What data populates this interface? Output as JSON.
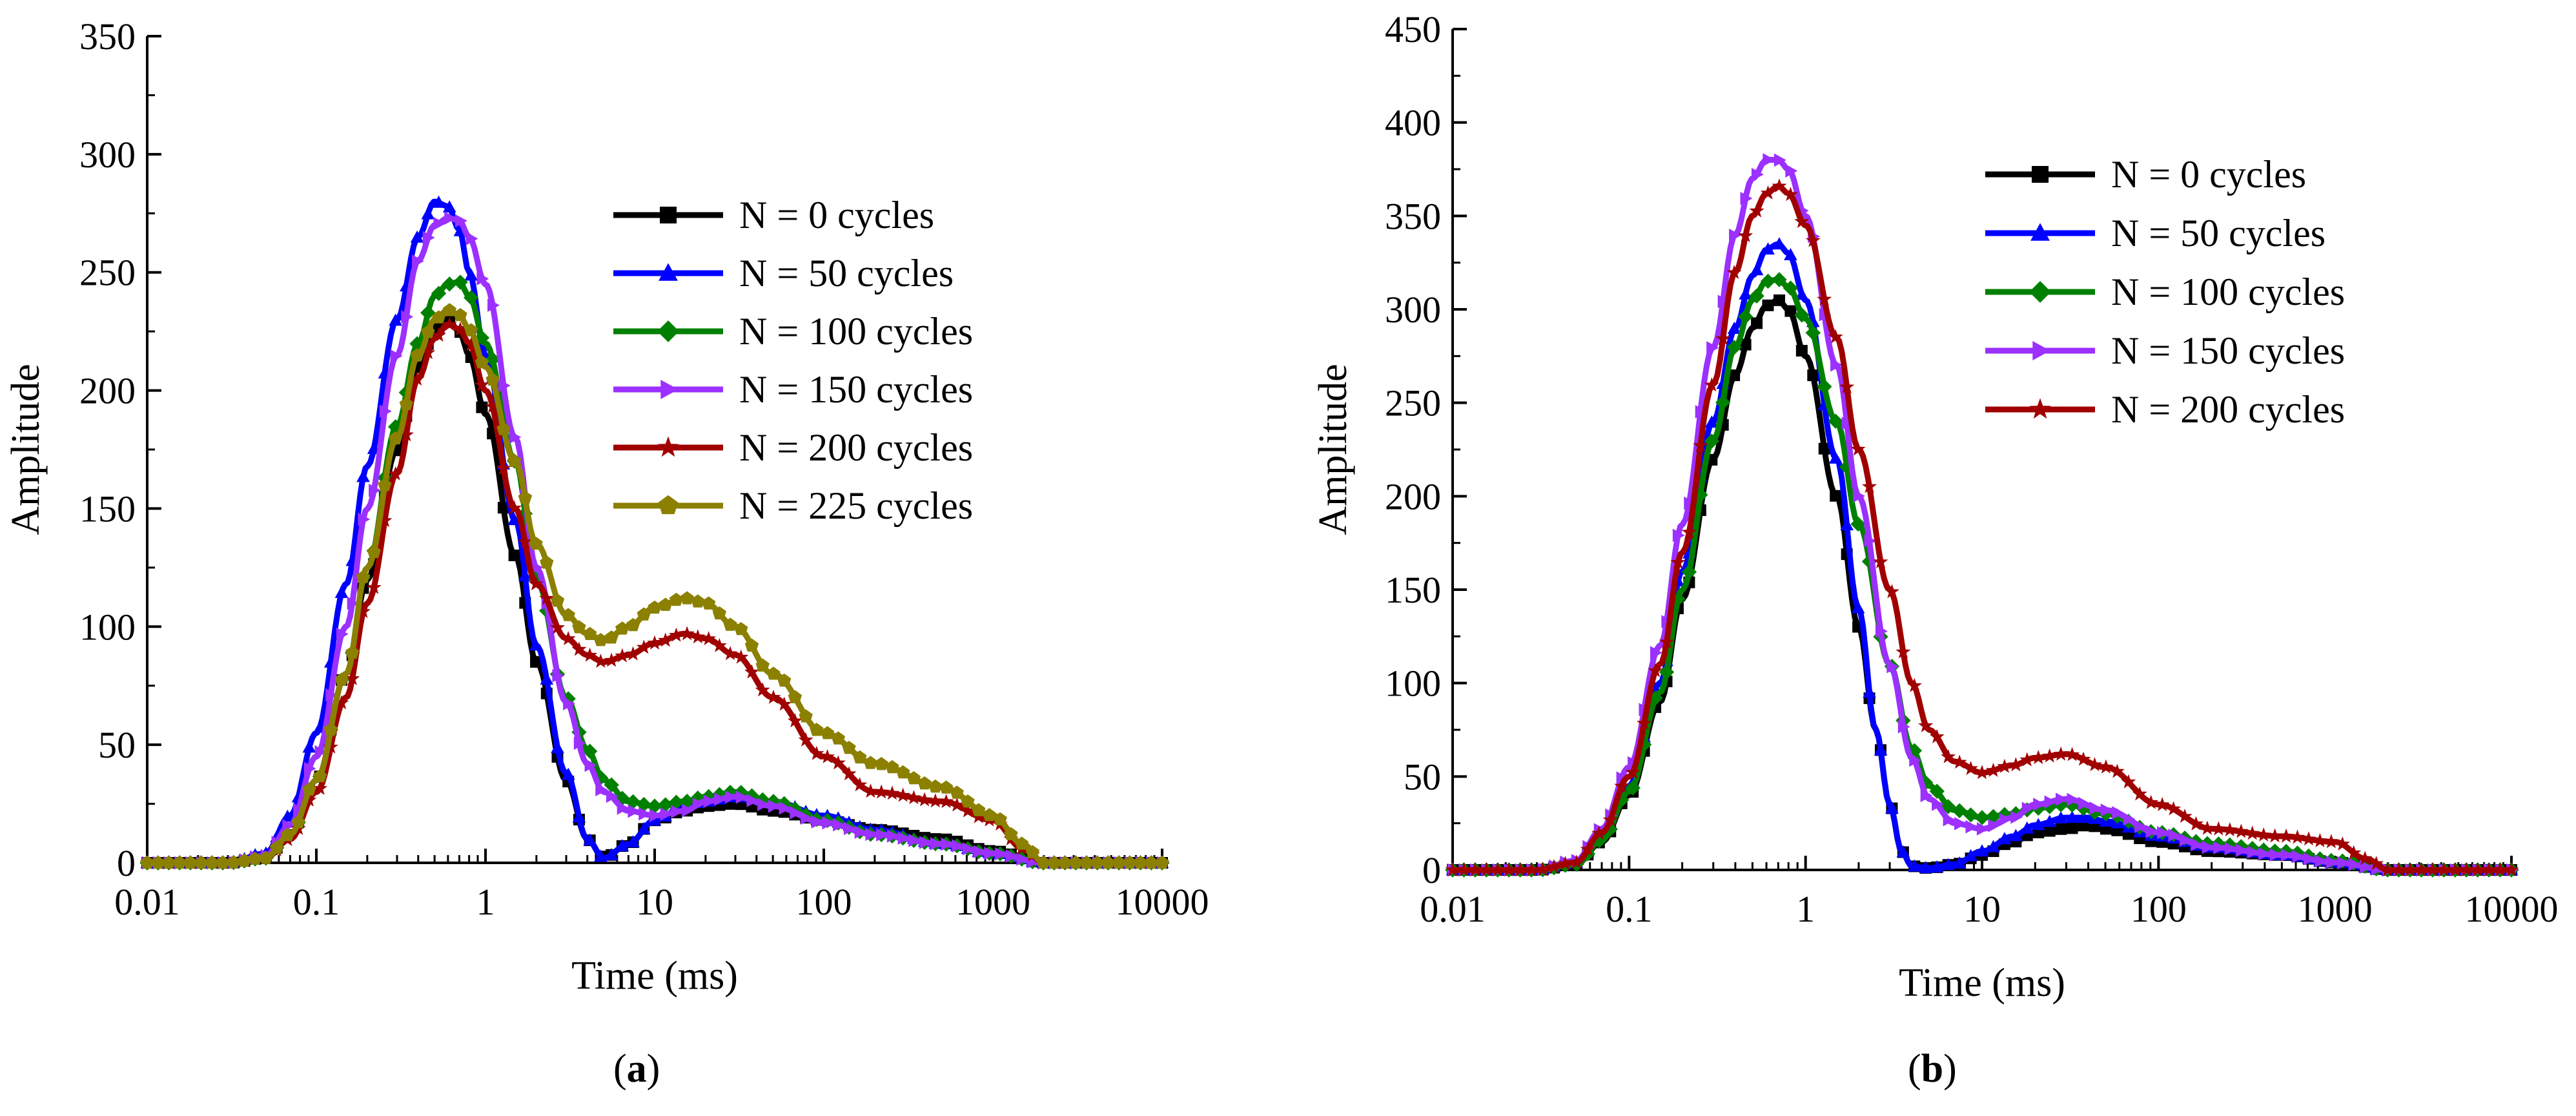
{
  "captions": {
    "a": {
      "open": "(",
      "letter": "a",
      "close": ")"
    },
    "b": {
      "open": "(",
      "letter": "b",
      "close": ")"
    }
  },
  "chart_data": [
    {
      "id": "a",
      "type": "line",
      "xscale": "log",
      "xlabel": "Time (ms)",
      "ylabel": "Amplitude",
      "xlim": [
        0.01,
        10000
      ],
      "ylim": [
        0,
        350
      ],
      "xticks": [
        0.01,
        0.1,
        1,
        10,
        100,
        1000,
        10000
      ],
      "xtick_labels": [
        "0.01",
        "0.1",
        "1",
        "10",
        "100",
        "1000",
        "10000"
      ],
      "yticks": [
        0,
        50,
        100,
        150,
        200,
        250,
        300,
        350
      ],
      "ytick_labels": [
        "0",
        "50",
        "100",
        "150",
        "200",
        "250",
        "300",
        "350"
      ],
      "legend_position": "upper-right",
      "series": [
        {
          "name": "N = 0 cycles",
          "color": "#000000",
          "marker": "square",
          "x": [
            0.01,
            0.03,
            0.05,
            0.07,
            0.1,
            0.15,
            0.2,
            0.3,
            0.4,
            0.5,
            0.6,
            0.7,
            0.8,
            1,
            1.5,
            2,
            3,
            4,
            5,
            7,
            10,
            15,
            20,
            30,
            50,
            100,
            200,
            500,
            1000,
            2000,
            10000
          ],
          "y": [
            0,
            0,
            2,
            12,
            35,
            80,
            120,
            175,
            210,
            225,
            230,
            225,
            215,
            190,
            130,
            85,
            35,
            10,
            2,
            8,
            18,
            22,
            24,
            25,
            22,
            18,
            14,
            10,
            5,
            0,
            0
          ]
        },
        {
          "name": "N = 50 cycles",
          "color": "#0000ff",
          "marker": "triangle-up",
          "x": [
            0.01,
            0.03,
            0.05,
            0.07,
            0.1,
            0.15,
            0.2,
            0.3,
            0.4,
            0.5,
            0.6,
            0.7,
            0.8,
            1,
            1.5,
            2,
            3,
            4,
            5,
            7,
            10,
            15,
            20,
            30,
            50,
            100,
            200,
            500,
            1000,
            2000,
            10000
          ],
          "y": [
            0,
            0,
            4,
            20,
            55,
            118,
            168,
            230,
            265,
            280,
            278,
            268,
            250,
            215,
            145,
            92,
            38,
            10,
            2,
            8,
            18,
            24,
            26,
            28,
            26,
            20,
            14,
            8,
            4,
            0,
            0
          ]
        },
        {
          "name": "N = 100 cycles",
          "color": "#008000",
          "marker": "diamond",
          "x": [
            0.01,
            0.03,
            0.05,
            0.07,
            0.1,
            0.15,
            0.2,
            0.3,
            0.4,
            0.5,
            0.6,
            0.7,
            0.8,
            1,
            1.5,
            2,
            3,
            4,
            5,
            7,
            10,
            15,
            20,
            30,
            50,
            100,
            200,
            500,
            1000,
            2000,
            10000
          ],
          "y": [
            0,
            0,
            2,
            12,
            35,
            80,
            125,
            185,
            220,
            240,
            245,
            246,
            240,
            220,
            170,
            120,
            70,
            48,
            35,
            26,
            24,
            26,
            28,
            30,
            26,
            18,
            12,
            8,
            4,
            0,
            0
          ]
        },
        {
          "name": "N = 150 cycles",
          "color": "#9b30ff",
          "marker": "triangle-right",
          "x": [
            0.01,
            0.03,
            0.05,
            0.07,
            0.1,
            0.15,
            0.2,
            0.3,
            0.4,
            0.5,
            0.6,
            0.7,
            0.8,
            1,
            1.5,
            2,
            3,
            4,
            5,
            7,
            10,
            15,
            20,
            30,
            50,
            100,
            200,
            500,
            1000,
            2000,
            10000
          ],
          "y": [
            0,
            0,
            3,
            16,
            45,
            100,
            150,
            215,
            255,
            270,
            273,
            272,
            265,
            245,
            180,
            125,
            68,
            42,
            30,
            22,
            20,
            22,
            26,
            28,
            24,
            17,
            12,
            8,
            4,
            0,
            0
          ]
        },
        {
          "name": "N = 200 cycles",
          "color": "#a00000",
          "marker": "star",
          "x": [
            0.01,
            0.03,
            0.05,
            0.07,
            0.1,
            0.15,
            0.2,
            0.3,
            0.4,
            0.5,
            0.6,
            0.7,
            0.8,
            1,
            1.5,
            2,
            3,
            4,
            5,
            7,
            10,
            15,
            20,
            30,
            50,
            100,
            200,
            500,
            1000,
            1500,
            2000,
            10000
          ],
          "y": [
            0,
            0,
            2,
            10,
            30,
            70,
            110,
            165,
            205,
            222,
            228,
            226,
            220,
            200,
            150,
            118,
            95,
            88,
            85,
            88,
            93,
            97,
            95,
            88,
            70,
            45,
            30,
            26,
            18,
            6,
            0,
            0
          ]
        },
        {
          "name": "N = 225 cycles",
          "color": "#8b8000",
          "marker": "pentagon",
          "x": [
            0.01,
            0.03,
            0.05,
            0.07,
            0.1,
            0.15,
            0.2,
            0.3,
            0.4,
            0.5,
            0.6,
            0.7,
            0.8,
            1,
            1.5,
            2,
            3,
            4,
            5,
            7,
            10,
            15,
            20,
            30,
            50,
            100,
            200,
            500,
            1000,
            1500,
            2000,
            10000
          ],
          "y": [
            0,
            0,
            2,
            12,
            35,
            80,
            125,
            180,
            215,
            230,
            234,
            232,
            226,
            210,
            170,
            135,
            105,
            97,
            94,
            100,
            108,
            112,
            110,
            100,
            80,
            55,
            42,
            32,
            20,
            8,
            0,
            0
          ]
        }
      ]
    },
    {
      "id": "b",
      "type": "line",
      "xscale": "log",
      "xlabel": "Time (ms)",
      "ylabel": "Amplitude",
      "xlim": [
        0.01,
        10000
      ],
      "ylim": [
        0,
        450
      ],
      "xticks": [
        0.01,
        0.1,
        1,
        10,
        100,
        1000,
        10000
      ],
      "xtick_labels": [
        "0.01",
        "0.1",
        "1",
        "10",
        "100",
        "1000",
        "10000"
      ],
      "yticks": [
        0,
        50,
        100,
        150,
        200,
        250,
        300,
        350,
        400,
        450
      ],
      "ytick_labels": [
        "0",
        "50",
        "100",
        "150",
        "200",
        "250",
        "300",
        "350",
        "400",
        "450"
      ],
      "legend_position": "upper-right",
      "series": [
        {
          "name": "N = 0 cycles",
          "color": "#000000",
          "marker": "square",
          "x": [
            0.01,
            0.03,
            0.05,
            0.07,
            0.1,
            0.15,
            0.2,
            0.3,
            0.4,
            0.5,
            0.6,
            0.7,
            0.8,
            1,
            1.5,
            2,
            2.5,
            3,
            3.5,
            4,
            5,
            7,
            10,
            15,
            20,
            30,
            40,
            50,
            100,
            200,
            500,
            1000,
            2000,
            10000
          ],
          "y": [
            0,
            0,
            3,
            15,
            40,
            90,
            145,
            220,
            265,
            290,
            302,
            305,
            300,
            275,
            200,
            130,
            75,
            35,
            10,
            2,
            1,
            3,
            8,
            15,
            20,
            22,
            24,
            22,
            15,
            10,
            8,
            4,
            0,
            0
          ]
        },
        {
          "name": "N = 50 cycles",
          "color": "#0000ff",
          "marker": "triangle-up",
          "x": [
            0.01,
            0.03,
            0.05,
            0.07,
            0.1,
            0.15,
            0.2,
            0.3,
            0.4,
            0.5,
            0.6,
            0.7,
            0.8,
            1,
            1.5,
            2,
            2.5,
            3,
            3.5,
            4,
            5,
            7,
            10,
            15,
            20,
            30,
            40,
            50,
            100,
            200,
            500,
            1000,
            2000,
            10000
          ],
          "y": [
            0,
            0,
            4,
            18,
            45,
            100,
            160,
            240,
            290,
            318,
            332,
            335,
            330,
            305,
            220,
            140,
            75,
            35,
            10,
            2,
            1,
            3,
            10,
            18,
            24,
            28,
            28,
            26,
            18,
            12,
            8,
            4,
            0,
            0
          ]
        },
        {
          "name": "N = 100 cycles",
          "color": "#008000",
          "marker": "diamond",
          "x": [
            0.01,
            0.03,
            0.05,
            0.07,
            0.1,
            0.15,
            0.2,
            0.3,
            0.4,
            0.5,
            0.6,
            0.7,
            0.8,
            1,
            1.5,
            2,
            3,
            4,
            5,
            7,
            10,
            15,
            20,
            30,
            50,
            100,
            200,
            500,
            1000,
            2000,
            10000
          ],
          "y": [
            0,
            0,
            3,
            16,
            42,
            95,
            150,
            230,
            280,
            305,
            315,
            316,
            312,
            295,
            240,
            185,
            110,
            65,
            45,
            32,
            28,
            30,
            33,
            35,
            30,
            20,
            14,
            10,
            5,
            0,
            0
          ]
        },
        {
          "name": "N = 150 cycles",
          "color": "#9b30ff",
          "marker": "triangle-right",
          "x": [
            0.01,
            0.03,
            0.05,
            0.07,
            0.1,
            0.15,
            0.2,
            0.3,
            0.4,
            0.5,
            0.6,
            0.7,
            0.8,
            1,
            1.5,
            2,
            3,
            4,
            5,
            7,
            10,
            15,
            20,
            30,
            50,
            100,
            200,
            500,
            1000,
            2000,
            10000
          ],
          "y": [
            0,
            0,
            5,
            22,
            55,
            120,
            185,
            280,
            340,
            370,
            380,
            380,
            375,
            350,
            270,
            200,
            110,
            60,
            38,
            25,
            22,
            28,
            35,
            38,
            32,
            20,
            12,
            8,
            4,
            0,
            0
          ]
        },
        {
          "name": "N = 200 cycles",
          "color": "#a00000",
          "marker": "star",
          "x": [
            0.01,
            0.03,
            0.05,
            0.07,
            0.1,
            0.15,
            0.2,
            0.3,
            0.4,
            0.5,
            0.6,
            0.7,
            0.8,
            1,
            1.5,
            2,
            3,
            4,
            5,
            7,
            10,
            15,
            20,
            30,
            50,
            100,
            200,
            500,
            1000,
            1500,
            2000,
            10000
          ],
          "y": [
            0,
            0,
            4,
            20,
            50,
            110,
            170,
            260,
            320,
            350,
            362,
            366,
            362,
            345,
            285,
            225,
            150,
            100,
            75,
            58,
            52,
            56,
            60,
            62,
            55,
            35,
            22,
            18,
            15,
            6,
            0,
            0
          ]
        }
      ]
    }
  ]
}
